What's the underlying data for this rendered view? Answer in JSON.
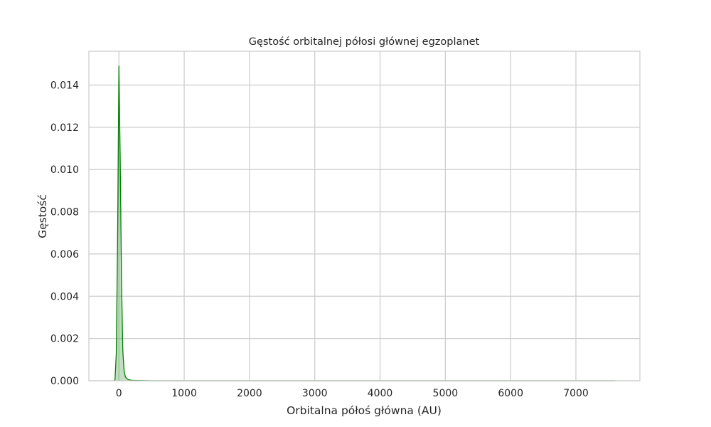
{
  "chart_data": {
    "type": "area",
    "title": "Gęstość orbitalnej półosi głównej egzoplanet",
    "xlabel": "Orbitalna półoś główna (AU)",
    "ylabel": "Gęstość",
    "xlim": [
      -460,
      7980
    ],
    "ylim": [
      0,
      0.0156
    ],
    "x_ticks": [
      0,
      1000,
      2000,
      3000,
      4000,
      5000,
      6000,
      7000
    ],
    "x_tick_labels": [
      "0",
      "1000",
      "2000",
      "3000",
      "4000",
      "5000",
      "6000",
      "7000"
    ],
    "y_ticks": [
      0,
      0.002,
      0.004,
      0.006,
      0.008,
      0.01,
      0.012,
      0.014
    ],
    "y_tick_labels": [
      "0.000",
      "0.002",
      "0.004",
      "0.006",
      "0.008",
      "0.010",
      "0.012",
      "0.014"
    ],
    "grid": true,
    "series": [
      {
        "color": "#008000",
        "fill_color": "#008000",
        "fill_opacity": 0.25,
        "x": [
          -75,
          -60,
          -40,
          -20,
          0,
          20,
          40,
          60,
          80,
          100,
          130,
          160,
          200,
          300,
          500,
          1000,
          2000,
          3000,
          4000,
          5000,
          6000,
          7000,
          7600
        ],
        "y": [
          0.0,
          5e-05,
          0.0013,
          0.0068,
          0.0149,
          0.0105,
          0.0047,
          0.0014,
          0.00045,
          0.00018,
          8e-05,
          4e-05,
          2e-05,
          1e-05,
          0.0,
          0.0,
          0.0,
          0.0,
          0.0,
          0.0,
          0.0,
          0.0,
          0.0
        ]
      }
    ]
  }
}
